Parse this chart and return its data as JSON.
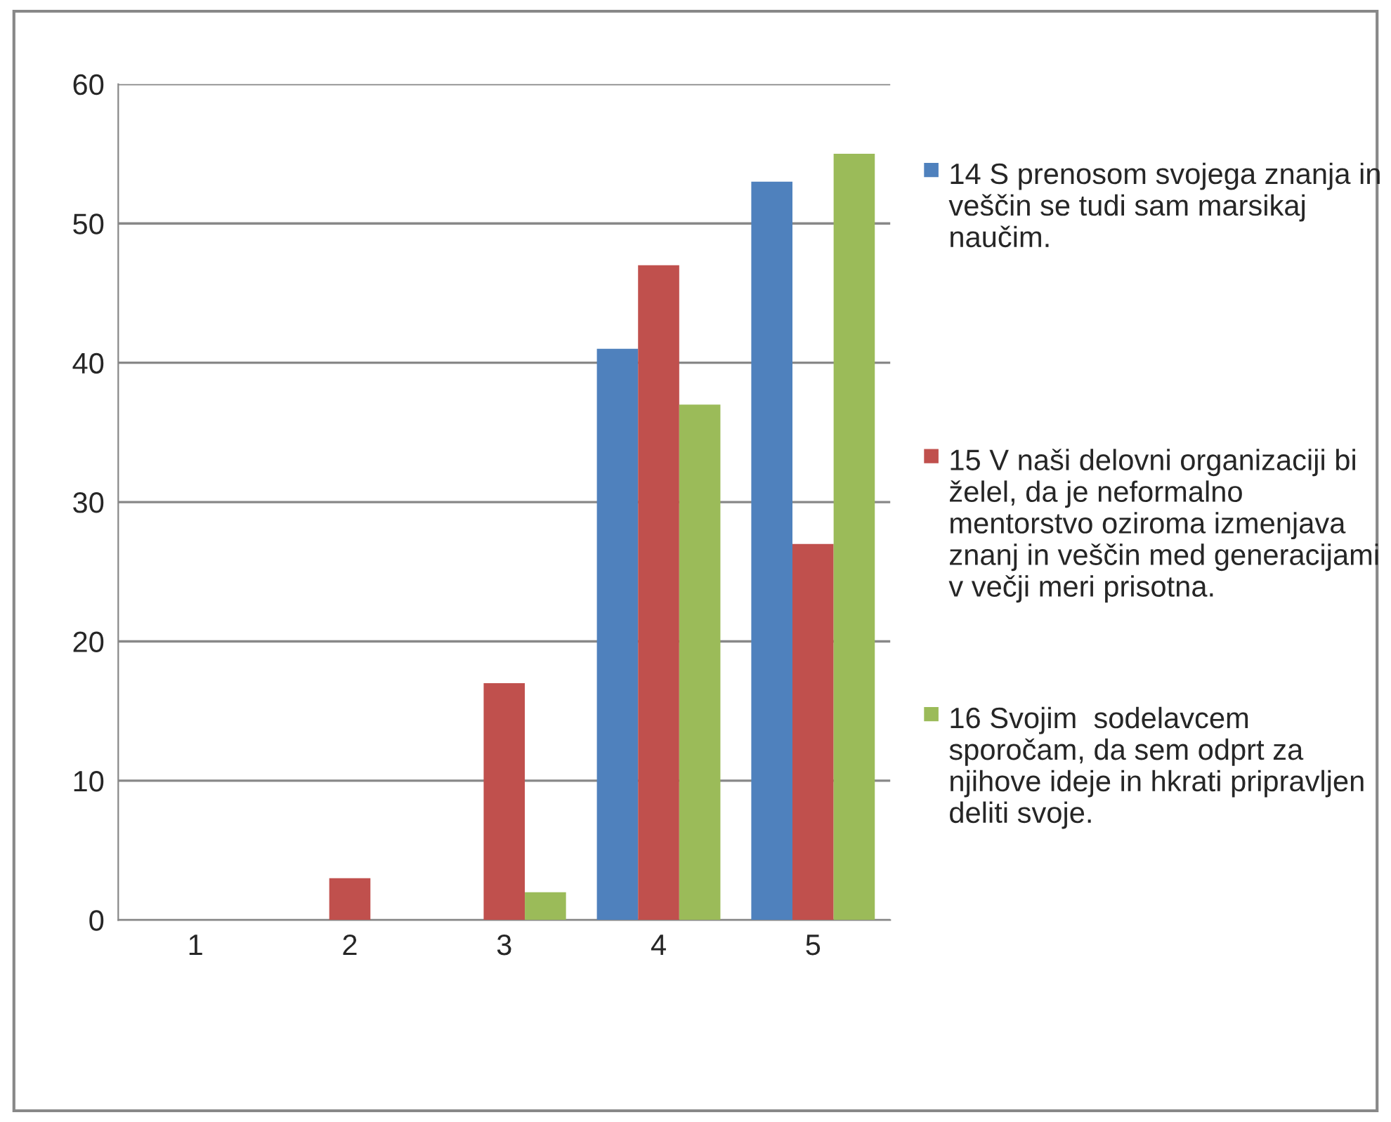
{
  "chart_data": {
    "type": "bar",
    "categories": [
      "1",
      "2",
      "3",
      "4",
      "5"
    ],
    "series": [
      {
        "name": "14 S prenosom svojega znanja in veščin se tudi sam marsikaj naučim.",
        "color": "#4f81bd",
        "values": [
          0,
          0,
          0,
          41,
          53
        ]
      },
      {
        "name": "15 V naši delovni organizaciji bi želel, da je neformalno mentorstvo oziroma izmenjava znanj in veščin med generacijami v večji meri prisotna.",
        "color": "#c0504d",
        "values": [
          0,
          3,
          17,
          47,
          27
        ]
      },
      {
        "name": "16 Svojim  sodelavcem sporočam, da sem odprt za njihove ideje in hkrati pripravljen deliti svoje.",
        "color": "#9bbb59",
        "values": [
          0,
          0,
          2,
          37,
          55
        ]
      }
    ],
    "ylim": [
      0,
      60
    ],
    "yticks": [
      0,
      10,
      20,
      30,
      40,
      50,
      60
    ],
    "grid": "y",
    "legend": "right"
  }
}
